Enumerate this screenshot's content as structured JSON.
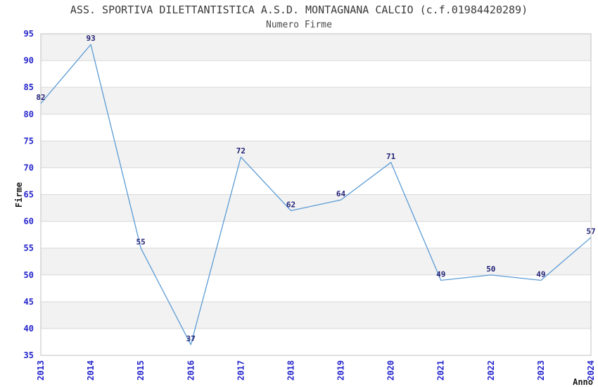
{
  "chart_data": {
    "type": "line",
    "title": "ASS. SPORTIVA DILETTANTISTICA A.S.D. MONTAGNANA CALCIO (c.f.01984420289)",
    "subtitle": "Numero Firme",
    "xlabel": "Anno",
    "ylabel": "Firme",
    "categories": [
      "2013",
      "2014",
      "2015",
      "2016",
      "2017",
      "2018",
      "2019",
      "2020",
      "2021",
      "2022",
      "2023",
      "2024"
    ],
    "series": [
      {
        "name": "Numero Firme",
        "values": [
          82,
          93,
          55,
          37,
          72,
          62,
          64,
          71,
          49,
          50,
          49,
          57
        ]
      }
    ],
    "ylim": [
      35,
      95
    ],
    "ytick_step": 5,
    "grid": true,
    "banded_background": true,
    "legend": "none",
    "colors": {
      "line": "#5b9bd5",
      "tick_label": "#2424cc",
      "data_label": "#222277",
      "band": "#f2f2f2",
      "band_alt": "#ffffff",
      "gridline": "#d9d9d9",
      "border": "#c0c0c0",
      "title_text": "#3a3a3a",
      "subtitle_text": "#4a4a4a",
      "axis_title_text": "#1a1a1a"
    }
  }
}
